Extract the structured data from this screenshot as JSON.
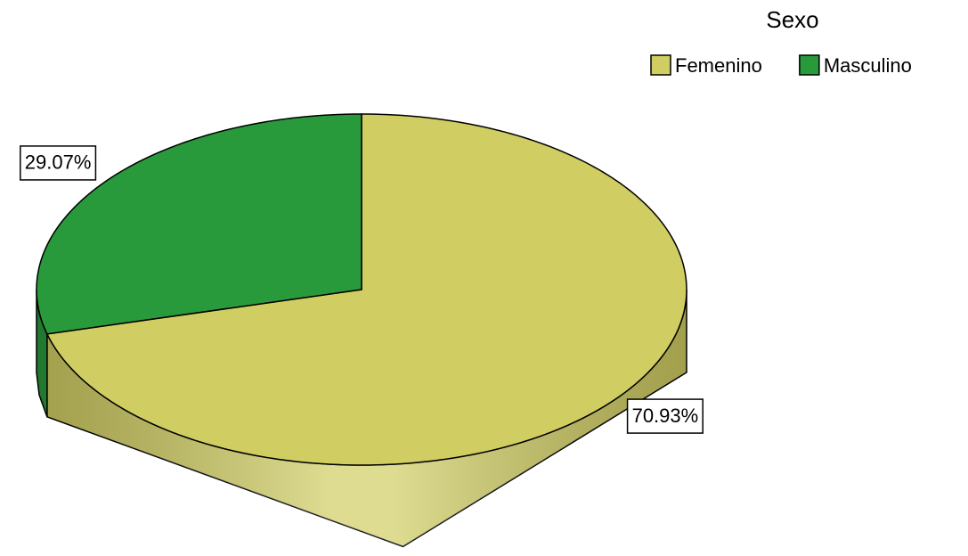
{
  "chart_data": {
    "type": "pie",
    "legend_title": "Sexo",
    "categories": [
      "Femenino",
      "Masculino"
    ],
    "values": [
      70.93,
      29.07
    ],
    "value_labels": [
      "70.93%",
      "29.07%"
    ],
    "colors": [
      "#d0cd62",
      "#299a3b"
    ]
  }
}
